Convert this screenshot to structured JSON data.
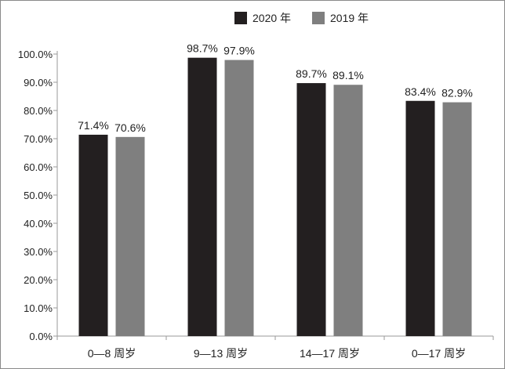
{
  "chart_data": {
    "type": "bar",
    "title": "",
    "xlabel": "",
    "ylabel": "",
    "categories": [
      "0—8 周岁",
      "9—13 周岁",
      "14—17 周岁",
      "0—17 周岁"
    ],
    "series": [
      {
        "name": "2020 年",
        "color": "#231f20",
        "values": [
          71.4,
          98.7,
          89.7,
          83.4
        ],
        "labels": [
          "71.4%",
          "98.7%",
          "89.7%",
          "83.4%"
        ]
      },
      {
        "name": "2019 年",
        "color": "#7f7f7f",
        "values": [
          70.6,
          97.9,
          89.1,
          82.9
        ],
        "labels": [
          "70.6%",
          "97.9%",
          "89.1%",
          "82.9%"
        ]
      }
    ],
    "ylim": [
      0,
      100
    ],
    "y_ticks": [
      0,
      10,
      20,
      30,
      40,
      50,
      60,
      70,
      80,
      90,
      100
    ],
    "y_tick_labels": [
      "0.0%",
      "10.0%",
      "20.0%",
      "30.0%",
      "40.0%",
      "50.0%",
      "60.0%",
      "70.0%",
      "80.0%",
      "90.0%",
      "100.0%"
    ],
    "grid": false,
    "legend_position": "top-center",
    "axis_color": "#9a9a9a"
  }
}
